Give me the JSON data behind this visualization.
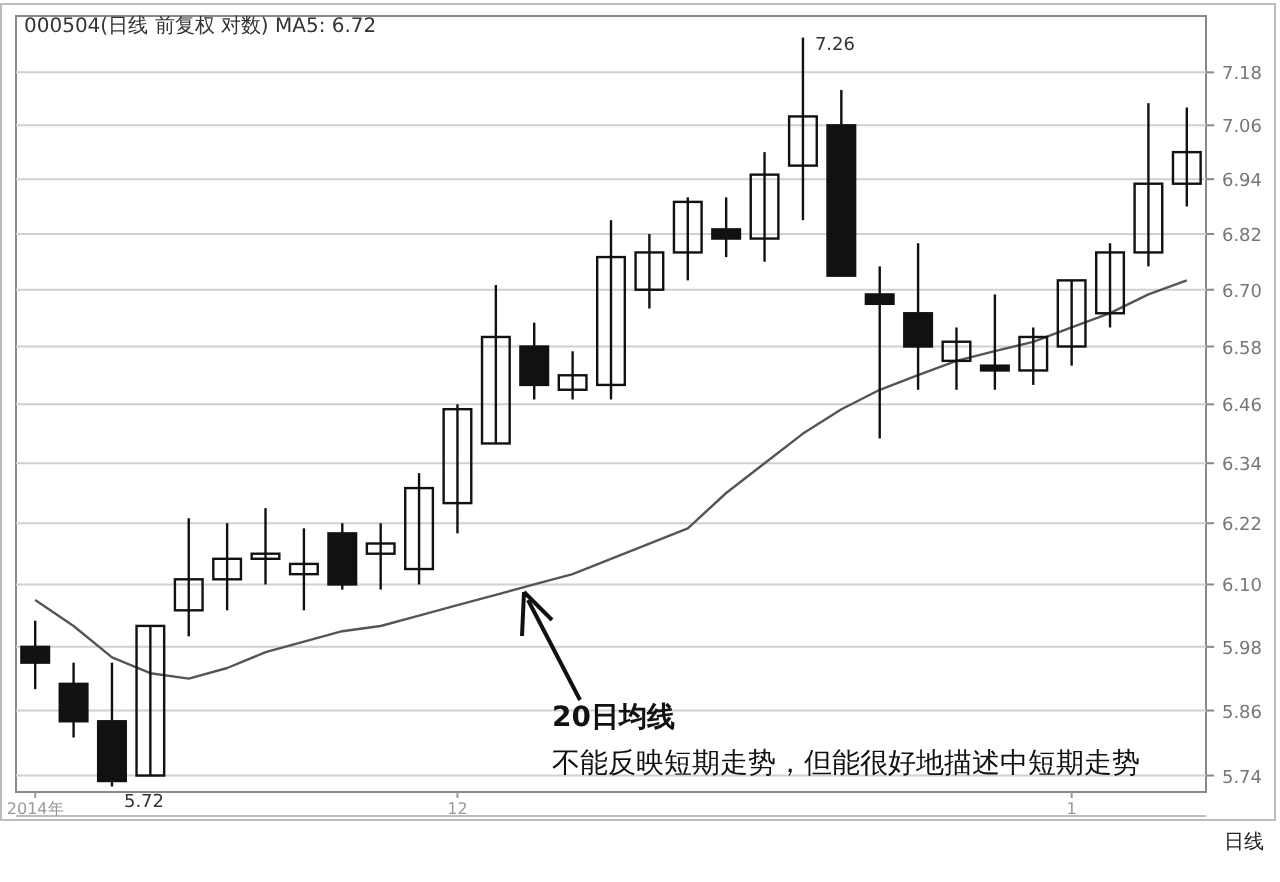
{
  "chart_data": {
    "type": "candlestick",
    "title": "000504(日线 前复权 对数) MA5: 6.72",
    "categories": [
      "2014年",
      null,
      null,
      null,
      null,
      null,
      null,
      null,
      null,
      null,
      null,
      "12",
      null,
      null,
      null,
      null,
      null,
      null,
      null,
      null,
      null,
      null,
      null,
      null,
      null,
      null,
      null,
      "1",
      null,
      null,
      null
    ],
    "ohlc": [
      [
        5.98,
        6.03,
        5.9,
        5.95
      ],
      [
        5.91,
        5.95,
        5.81,
        5.84
      ],
      [
        5.84,
        5.95,
        5.72,
        5.73
      ],
      [
        5.74,
        6.02,
        5.74,
        6.02
      ],
      [
        6.05,
        6.23,
        6.0,
        6.11
      ],
      [
        6.11,
        6.22,
        6.05,
        6.15
      ],
      [
        6.15,
        6.25,
        6.1,
        6.16
      ],
      [
        6.12,
        6.21,
        6.05,
        6.14
      ],
      [
        6.2,
        6.22,
        6.09,
        6.1
      ],
      [
        6.16,
        6.22,
        6.09,
        6.18
      ],
      [
        6.13,
        6.32,
        6.1,
        6.29
      ],
      [
        6.26,
        6.46,
        6.2,
        6.45
      ],
      [
        6.38,
        6.71,
        6.38,
        6.6
      ],
      [
        6.58,
        6.63,
        6.47,
        6.5
      ],
      [
        6.49,
        6.57,
        6.47,
        6.52
      ],
      [
        6.5,
        6.85,
        6.47,
        6.77
      ],
      [
        6.7,
        6.82,
        6.66,
        6.78
      ],
      [
        6.78,
        6.9,
        6.72,
        6.89
      ],
      [
        6.83,
        6.9,
        6.77,
        6.81
      ],
      [
        6.81,
        7.0,
        6.76,
        6.95
      ],
      [
        6.97,
        7.26,
        6.85,
        7.08
      ],
      [
        7.06,
        7.14,
        6.73,
        6.73
      ],
      [
        6.69,
        6.75,
        6.39,
        6.67
      ],
      [
        6.65,
        6.8,
        6.49,
        6.58
      ],
      [
        6.55,
        6.62,
        6.49,
        6.59
      ],
      [
        6.54,
        6.69,
        6.49,
        6.53
      ],
      [
        6.53,
        6.62,
        6.5,
        6.6
      ],
      [
        6.58,
        6.72,
        6.54,
        6.72
      ],
      [
        6.65,
        6.8,
        6.62,
        6.78
      ],
      [
        6.78,
        7.11,
        6.75,
        6.93
      ],
      [
        6.93,
        7.1,
        6.88,
        7.0
      ]
    ],
    "series": [
      {
        "type": "line",
        "color": "#555555",
        "values": [
          6.07,
          6.02,
          5.96,
          5.93,
          5.92,
          5.94,
          5.97,
          5.99,
          6.01,
          6.02,
          6.04,
          6.06,
          6.08,
          6.1,
          6.12,
          6.15,
          6.18,
          6.21,
          6.28,
          6.34,
          6.4,
          6.45,
          6.49,
          6.52,
          6.55,
          6.57,
          6.59,
          6.62,
          6.65,
          6.69,
          6.72
        ]
      }
    ],
    "ylim": [
      5.71,
      7.31
    ],
    "yticks": [
      5.74,
      5.86,
      5.98,
      {
        "value": 6.1,
        "label": "6.10"
      },
      6.22,
      6.34,
      6.46,
      6.58,
      {
        "value": 6.7,
        "label": "6.70"
      },
      6.82,
      6.94,
      7.06,
      7.18
    ],
    "log": "y",
    "grid": "y",
    "annotations": [
      "7.26",
      "5.72",
      "20日均线",
      "不能反映短期走势，但能很好地描述中短期走势",
      "日线"
    ]
  }
}
